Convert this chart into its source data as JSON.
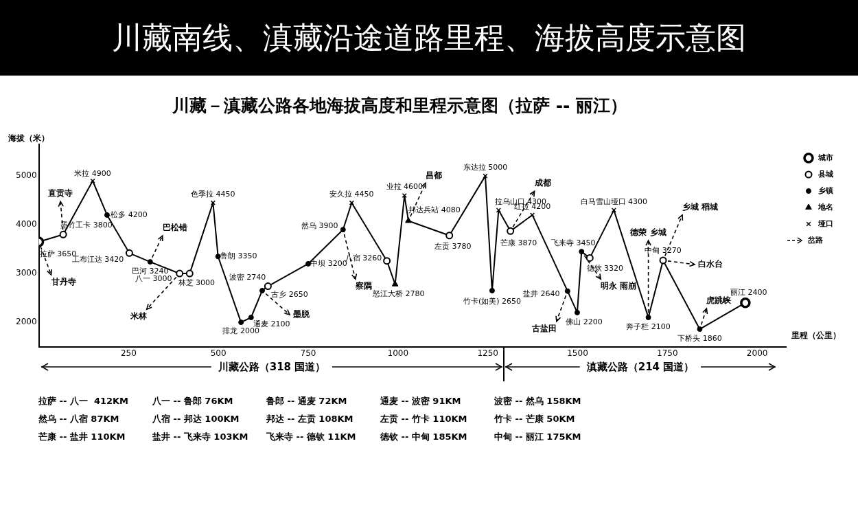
{
  "chart_data": {
    "type": "line",
    "title": "川藏南线、滇藏沿途道路里程、海拔高度示意图",
    "subtitle": "川藏－滇藏公路各地海拔高度和里程示意图（拉萨 -- 丽江）",
    "xlabel": "里程（公里）",
    "ylabel": "海拔（米）",
    "xlim": [
      0,
      2080
    ],
    "xticks": [
      250,
      500,
      750,
      1000,
      1250,
      1500,
      1750,
      2000
    ],
    "ylim": [
      1500,
      5650
    ],
    "yticks": [
      2000,
      3000,
      4000,
      5000
    ],
    "grid": false,
    "legend": "right",
    "series": [
      {
        "type": "line",
        "color": "#000000",
        "marker": "none",
        "x": [
          0,
          68,
          150,
          190,
          252,
          310,
          392,
          420,
          485,
          499,
          563,
          591,
          622,
          638,
          750,
          847,
          871,
          969,
          992,
          1018,
          1029,
          1143,
          1243,
          1262,
          1280,
          1313,
          1374,
          1472,
          1499,
          1511,
          1534,
          1601,
          1697,
          1738,
          1840,
          1967
        ],
        "values": [
          3650,
          3800,
          4900,
          4200,
          3420,
          3240,
          3000,
          3000,
          4450,
          3350,
          2000,
          2100,
          2650,
          2740,
          3200,
          3900,
          4450,
          3260,
          2780,
          4600,
          4080,
          3780,
          5000,
          2650,
          4300,
          3870,
          4200,
          2640,
          2200,
          3450,
          3320,
          4300,
          2100,
          3270,
          1860,
          2400
        ],
        "value_labels": [
          "拉萨 3650",
          "墨竹工卡 3800",
          "米拉 4900",
          "松多 4200",
          "工布江达 3420",
          "巴河 3240",
          "八一 3000",
          "林芝 3000",
          "色季拉 4450",
          "鲁朗 3350",
          "排龙 2000",
          "通麦 2100",
          "古乡 2650",
          "波密 2740",
          "中坝 3200",
          "然乌 3900",
          "安久拉 4450",
          "八宿 3260",
          "怒江大桥 2780",
          "业拉 4600",
          "邦达兵站 4080",
          "左贡 3780",
          "东达拉 5000",
          "竹卡(如美) 2650",
          "拉乌山口 4300",
          "芒康 3870",
          "红拉 4200",
          "盐井 2640",
          "佛山 2200",
          "飞来寺 3450",
          "德钦 3320",
          "白马雪山垭口 4300",
          "奔子栏 2100",
          "中甸 3270",
          "下桥头 1860",
          "丽江 2400"
        ]
      },
      {
        "type": "scatter",
        "name": "城市",
        "color": "#000000",
        "marker": "circle",
        "x": [
          0,
          1967
        ],
        "values": [
          3650,
          2400
        ]
      },
      {
        "type": "scatter",
        "name": "县城",
        "color": "#000000",
        "marker": "circle",
        "x": [
          68,
          252,
          392,
          420,
          638,
          969,
          1143,
          1313,
          1534,
          1738
        ],
        "values": [
          3800,
          3420,
          3000,
          3000,
          2740,
          3260,
          3780,
          3870,
          3320,
          3270
        ]
      },
      {
        "type": "scatter",
        "name": "乡镇",
        "color": "#000000",
        "marker": "circle",
        "x": [
          190,
          310,
          499,
          563,
          591,
          622,
          750,
          847,
          1262,
          1472,
          1499,
          1511,
          1697,
          1840
        ],
        "values": [
          4200,
          3240,
          3350,
          2000,
          2100,
          2650,
          3200,
          3900,
          2650,
          2640,
          2200,
          3450,
          2100,
          1860
        ]
      },
      {
        "type": "scatter",
        "name": "地名",
        "color": "#000000",
        "marker": "triangle",
        "x": [
          992,
          1029
        ],
        "values": [
          2780,
          4080
        ]
      },
      {
        "type": "scatter",
        "name": "垭口",
        "color": "#000000",
        "marker": "cross",
        "x": [
          150,
          485,
          871,
          1018,
          1243,
          1280,
          1374,
          1601
        ],
        "values": [
          4900,
          4450,
          4450,
          4600,
          5000,
          4300,
          4200,
          4300
        ]
      }
    ],
    "annotations": [
      {
        "text": "直贡寺",
        "x": 68,
        "y": 3800
      },
      {
        "text": "甘丹寺",
        "x": 0,
        "y": 3650
      },
      {
        "text": "巴松错",
        "x": 310,
        "y": 3240
      },
      {
        "text": "米林",
        "x": 392,
        "y": 3000
      },
      {
        "text": "墨脱",
        "x": 622,
        "y": 2650
      },
      {
        "text": "察隅",
        "x": 847,
        "y": 3900
      },
      {
        "text": "昌都",
        "x": 1029,
        "y": 4080
      },
      {
        "text": "成都",
        "x": 1313,
        "y": 3870
      },
      {
        "text": "古盐田",
        "x": 1472,
        "y": 2640
      },
      {
        "text": "明永 雨崩",
        "x": 1511,
        "y": 3450
      },
      {
        "text": "德荣 乡城",
        "x": 1697,
        "y": 2100
      },
      {
        "text": "乡城 稻城",
        "x": 1738,
        "y": 3270
      },
      {
        "text": "白水台",
        "x": 1738,
        "y": 3270
      },
      {
        "text": "虎跳峡",
        "x": 1840,
        "y": 1860
      },
      "岔路",
      "川藏公路（318 国道）",
      "滇藏公路（214 国道）",
      "拉萨 -- 八一  412KM",
      "八一 -- 鲁郎 76KM",
      "鲁郎 -- 通麦 72KM",
      "通麦 -- 波密 91KM",
      "波密 -- 然乌 158KM",
      "然乌 -- 八宿 87KM",
      "八宿 -- 邦达 100KM",
      "邦达 -- 左贡 108KM",
      "左贡 -- 竹卡 110KM",
      "竹卡 -- 芒康 50KM",
      "芒康 -- 盐井 110KM",
      "盐井 -- 飞来寺 103KM",
      "飞来寺 -- 德钦 11KM",
      "德钦 -- 中甸 185KM",
      "中甸 -- 丽江 175KM"
    ]
  }
}
